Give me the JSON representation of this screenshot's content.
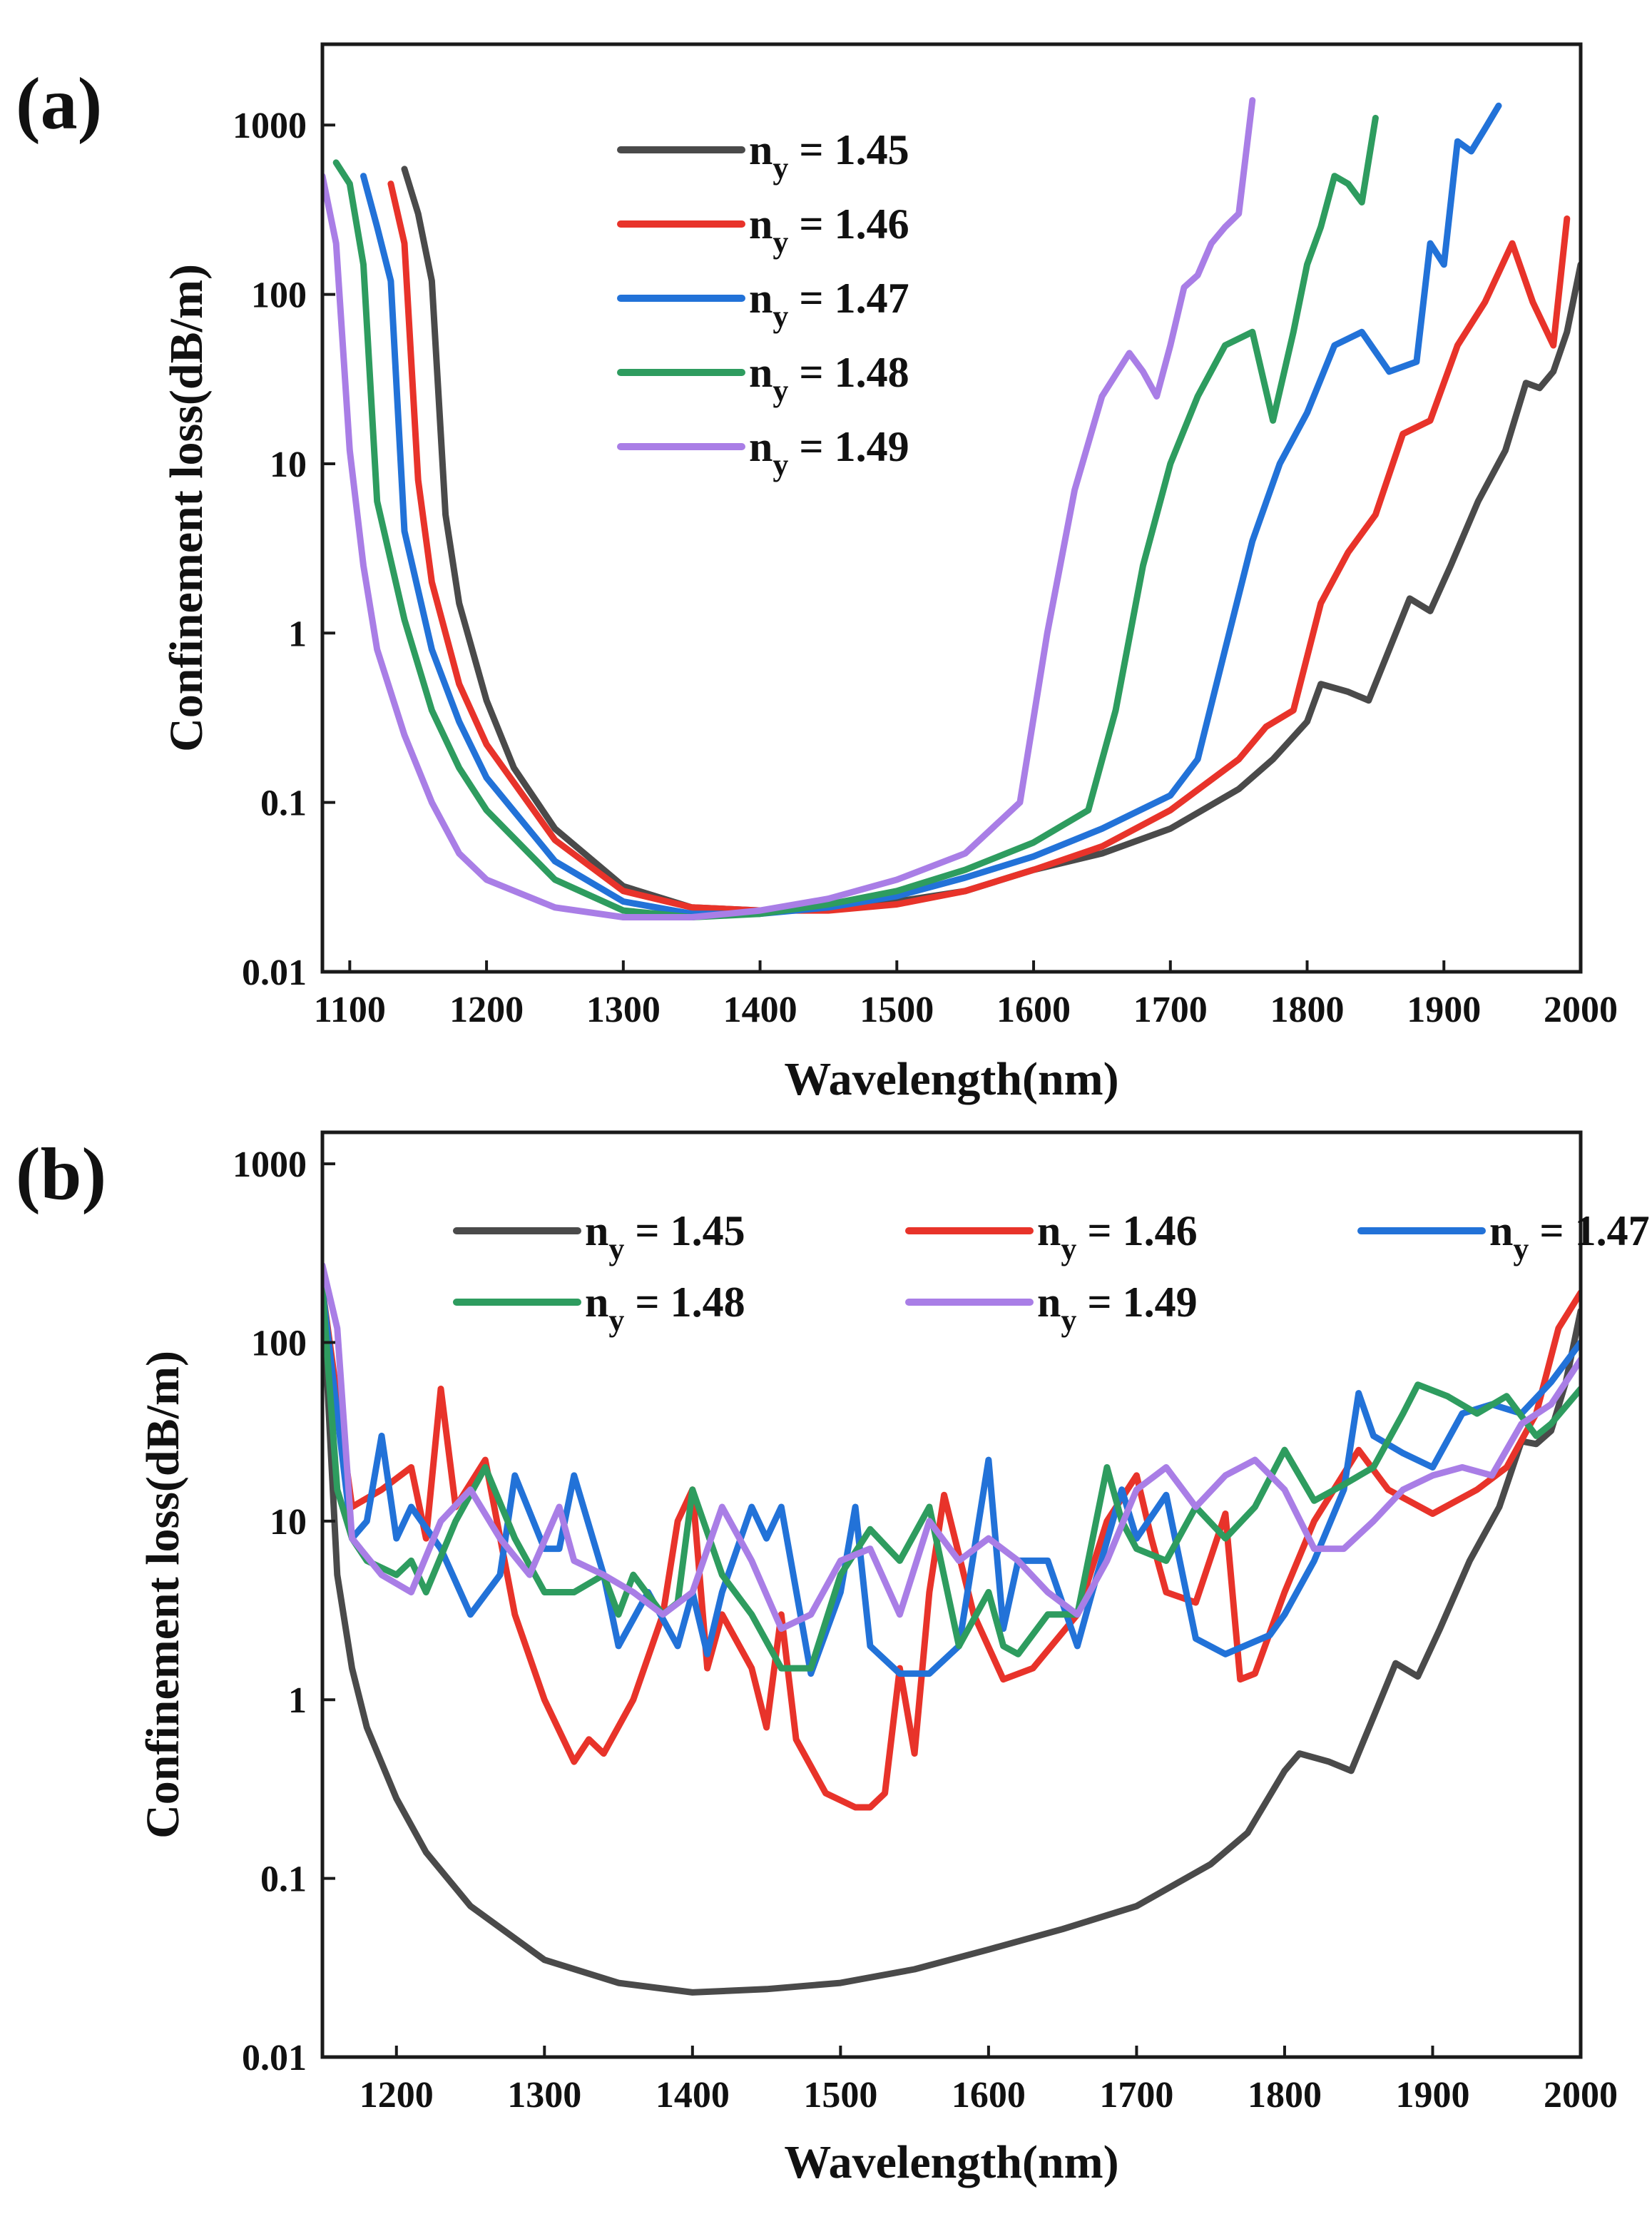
{
  "chart_data": [
    {
      "panel_label": "(a)",
      "type": "line",
      "xlabel": "Wavelength(nm)",
      "ylabel": "Confinement loss(dB/m)",
      "yscale": "log",
      "xlim": [
        1080,
        2000
      ],
      "ylim": [
        0.01,
        3000
      ],
      "xticks": [
        1100,
        1200,
        1300,
        1400,
        1500,
        1600,
        1700,
        1800,
        1900,
        2000
      ],
      "xtick_labels": [
        "1100",
        "1200",
        "1300",
        "1400",
        "1500",
        "1600",
        "1700",
        "1800",
        "1900",
        "2000"
      ],
      "yticks": [
        0.01,
        0.1,
        1,
        10,
        100,
        1000
      ],
      "ytick_labels": [
        "0.01",
        "0.1",
        "1",
        "10",
        "100",
        "1000"
      ],
      "legend": {
        "placement": "upper-center",
        "columns": 1
      },
      "series": [
        {
          "name": "n_y = 1.45",
          "label_main": "n",
          "label_sub": "y",
          "label_rest": " = 1.45",
          "color": "#4a4a4a",
          "x": [
            1140,
            1150,
            1160,
            1170,
            1180,
            1200,
            1220,
            1250,
            1300,
            1350,
            1400,
            1450,
            1500,
            1550,
            1600,
            1650,
            1700,
            1750,
            1775,
            1800,
            1810,
            1830,
            1845,
            1860,
            1875,
            1890,
            1905,
            1925,
            1945,
            1960,
            1970,
            1980,
            1990,
            2000
          ],
          "y": [
            550,
            300,
            120,
            5,
            1.5,
            0.4,
            0.16,
            0.07,
            0.032,
            0.024,
            0.023,
            0.024,
            0.026,
            0.03,
            0.04,
            0.05,
            0.07,
            0.12,
            0.18,
            0.3,
            0.5,
            0.45,
            0.4,
            0.8,
            1.6,
            1.35,
            2.5,
            6,
            12,
            30,
            28,
            35,
            60,
            150
          ]
        },
        {
          "name": "n_y = 1.46",
          "label_main": "n",
          "label_sub": "y",
          "label_rest": " = 1.46",
          "color": "#e8332a",
          "x": [
            1130,
            1140,
            1150,
            1160,
            1180,
            1200,
            1250,
            1300,
            1350,
            1400,
            1450,
            1500,
            1550,
            1600,
            1650,
            1700,
            1750,
            1770,
            1790,
            1810,
            1830,
            1850,
            1870,
            1890,
            1910,
            1930,
            1950,
            1965,
            1980,
            1990
          ],
          "y": [
            450,
            200,
            8,
            2,
            0.5,
            0.22,
            0.06,
            0.03,
            0.024,
            0.023,
            0.023,
            0.025,
            0.03,
            0.04,
            0.055,
            0.09,
            0.18,
            0.28,
            0.35,
            1.5,
            3,
            5,
            15,
            18,
            50,
            90,
            200,
            90,
            50,
            280
          ]
        },
        {
          "name": "n_y = 1.47",
          "label_main": "n",
          "label_sub": "y",
          "label_rest": " = 1.47",
          "color": "#2272d8",
          "x": [
            1110,
            1120,
            1130,
            1140,
            1160,
            1180,
            1200,
            1250,
            1300,
            1350,
            1400,
            1450,
            1500,
            1550,
            1600,
            1650,
            1700,
            1720,
            1740,
            1760,
            1780,
            1800,
            1820,
            1840,
            1860,
            1880,
            1890,
            1900,
            1910,
            1920,
            1930,
            1940
          ],
          "y": [
            500,
            250,
            120,
            4,
            0.8,
            0.3,
            0.14,
            0.045,
            0.026,
            0.022,
            0.022,
            0.024,
            0.028,
            0.036,
            0.048,
            0.07,
            0.11,
            0.18,
            0.8,
            3.5,
            10,
            20,
            50,
            60,
            35,
            40,
            200,
            150,
            800,
            700,
            950,
            1300
          ]
        },
        {
          "name": "n_y = 1.48",
          "label_main": "n",
          "label_sub": "y",
          "label_rest": " = 1.48",
          "color": "#2e9c5f",
          "x": [
            1090,
            1100,
            1110,
            1120,
            1140,
            1160,
            1180,
            1200,
            1250,
            1300,
            1350,
            1400,
            1450,
            1500,
            1550,
            1600,
            1640,
            1660,
            1680,
            1700,
            1720,
            1740,
            1760,
            1775,
            1790,
            1800,
            1810,
            1820,
            1830,
            1840,
            1850
          ],
          "y": [
            600,
            450,
            150,
            6,
            1.2,
            0.35,
            0.16,
            0.09,
            0.035,
            0.023,
            0.021,
            0.022,
            0.025,
            0.03,
            0.04,
            0.058,
            0.09,
            0.35,
            2.5,
            10,
            25,
            50,
            60,
            18,
            60,
            150,
            250,
            500,
            450,
            350,
            1100
          ]
        },
        {
          "name": "n_y = 1.49",
          "label_main": "n",
          "label_sub": "y",
          "label_rest": " = 1.49",
          "color": "#a97ee6",
          "x": [
            1080,
            1090,
            1100,
            1110,
            1120,
            1140,
            1160,
            1180,
            1200,
            1250,
            1300,
            1350,
            1400,
            1450,
            1500,
            1550,
            1590,
            1610,
            1630,
            1650,
            1670,
            1680,
            1690,
            1700,
            1710,
            1720,
            1730,
            1740,
            1750,
            1760
          ],
          "y": [
            500,
            200,
            12,
            2.5,
            0.8,
            0.25,
            0.1,
            0.05,
            0.035,
            0.024,
            0.021,
            0.021,
            0.023,
            0.027,
            0.035,
            0.05,
            0.1,
            1,
            7,
            25,
            45,
            35,
            25,
            50,
            110,
            130,
            200,
            250,
            300,
            1400
          ]
        }
      ]
    },
    {
      "panel_label": "(b)",
      "type": "line",
      "xlabel": "Wavelength(nm)",
      "ylabel": "Confinement loss(dB/m)",
      "yscale": "log",
      "xlim": [
        1150,
        2000
      ],
      "ylim": [
        0.01,
        1500
      ],
      "xticks": [
        1200,
        1300,
        1400,
        1500,
        1600,
        1700,
        1800,
        1900,
        2000
      ],
      "xtick_labels": [
        "1200",
        "1300",
        "1400",
        "1500",
        "1600",
        "1700",
        "1800",
        "1900",
        "2000"
      ],
      "yticks": [
        0.01,
        0.1,
        1,
        10,
        100,
        1000
      ],
      "ytick_labels": [
        "0.01",
        "0.1",
        "1",
        "10",
        "100",
        "1000"
      ],
      "legend": {
        "placement": "upper-center",
        "columns": 3
      },
      "series": [
        {
          "name": "n_y = 1.45",
          "label_main": "n",
          "label_sub": "y",
          "label_rest": " = 1.45",
          "color": "#4a4a4a",
          "x": [
            1150,
            1160,
            1170,
            1180,
            1200,
            1220,
            1250,
            1300,
            1350,
            1400,
            1450,
            1500,
            1550,
            1600,
            1650,
            1700,
            1750,
            1775,
            1800,
            1810,
            1830,
            1845,
            1860,
            1875,
            1890,
            1905,
            1925,
            1945,
            1960,
            1970,
            1980,
            1990,
            2000
          ],
          "y": [
            200,
            5,
            1.5,
            0.7,
            0.28,
            0.14,
            0.07,
            0.035,
            0.026,
            0.023,
            0.024,
            0.026,
            0.031,
            0.04,
            0.052,
            0.07,
            0.12,
            0.18,
            0.4,
            0.5,
            0.45,
            0.4,
            0.8,
            1.6,
            1.35,
            2.5,
            6,
            12,
            28,
            27,
            32,
            60,
            150
          ]
        },
        {
          "name": "n_y = 1.46",
          "label_main": "n",
          "label_sub": "y",
          "label_rest": " = 1.46",
          "color": "#e8332a",
          "x": [
            1150,
            1170,
            1190,
            1210,
            1220,
            1230,
            1240,
            1260,
            1280,
            1300,
            1320,
            1330,
            1340,
            1360,
            1380,
            1390,
            1400,
            1410,
            1420,
            1440,
            1450,
            1460,
            1470,
            1490,
            1510,
            1520,
            1530,
            1540,
            1550,
            1560,
            1570,
            1590,
            1610,
            1630,
            1660,
            1680,
            1700,
            1710,
            1720,
            1740,
            1760,
            1770,
            1780,
            1800,
            1820,
            1850,
            1870,
            1900,
            1930,
            1950,
            1970,
            1985,
            2000
          ],
          "y": [
            200,
            12,
            15,
            20,
            8,
            55,
            12,
            22,
            3,
            1,
            0.45,
            0.6,
            0.5,
            1,
            3,
            10,
            15,
            1.5,
            3,
            1.5,
            0.7,
            3,
            0.6,
            0.3,
            0.25,
            0.25,
            0.3,
            1.5,
            0.5,
            4,
            14,
            3,
            1.3,
            1.5,
            3,
            10,
            18,
            8,
            4,
            3.5,
            11,
            1.3,
            1.4,
            4,
            10,
            25,
            15,
            11,
            15,
            20,
            40,
            120,
            190
          ]
        },
        {
          "name": "n_y = 1.47",
          "label_main": "n",
          "label_sub": "y",
          "label_rest": " = 1.47",
          "color": "#2272d8",
          "x": [
            1150,
            1170,
            1180,
            1190,
            1200,
            1210,
            1230,
            1250,
            1270,
            1280,
            1300,
            1310,
            1320,
            1340,
            1350,
            1370,
            1390,
            1400,
            1410,
            1420,
            1440,
            1450,
            1460,
            1480,
            1500,
            1510,
            1520,
            1540,
            1560,
            1580,
            1600,
            1610,
            1620,
            1640,
            1660,
            1670,
            1690,
            1700,
            1720,
            1740,
            1760,
            1790,
            1800,
            1820,
            1840,
            1850,
            1860,
            1880,
            1900,
            1920,
            1940,
            1960,
            1980,
            2000
          ],
          "y": [
            200,
            8,
            10,
            30,
            8,
            12,
            7,
            3,
            5,
            18,
            7,
            7,
            18,
            5,
            2,
            4,
            2,
            4,
            1.8,
            4,
            12,
            8,
            12,
            1.4,
            4,
            12,
            2,
            1.4,
            1.4,
            2,
            22,
            2.5,
            6,
            6,
            2,
            4,
            15,
            8,
            14,
            2.2,
            1.8,
            2.3,
            3,
            6,
            15,
            52,
            30,
            24,
            20,
            40,
            45,
            40,
            60,
            100
          ]
        },
        {
          "name": "n_y = 1.48",
          "label_main": "n",
          "label_sub": "y",
          "label_rest": " = 1.48",
          "color": "#2e9c5f",
          "x": [
            1150,
            1160,
            1170,
            1180,
            1200,
            1210,
            1220,
            1240,
            1260,
            1280,
            1300,
            1320,
            1340,
            1350,
            1360,
            1380,
            1390,
            1400,
            1420,
            1440,
            1460,
            1480,
            1500,
            1520,
            1540,
            1560,
            1580,
            1600,
            1610,
            1620,
            1640,
            1660,
            1680,
            1690,
            1700,
            1720,
            1740,
            1760,
            1780,
            1800,
            1820,
            1840,
            1860,
            1880,
            1890,
            1910,
            1930,
            1950,
            1970,
            1980,
            2000
          ],
          "y": [
            200,
            15,
            8,
            6,
            5,
            6,
            4,
            10,
            20,
            8,
            4,
            4,
            5,
            3,
            5,
            3,
            3.5,
            15,
            5,
            3,
            1.5,
            1.5,
            5,
            9,
            6,
            12,
            2,
            4,
            2,
            1.8,
            3,
            3,
            20,
            10,
            7,
            6,
            12,
            8,
            12,
            25,
            13,
            16,
            20,
            40,
            58,
            50,
            40,
            50,
            30,
            35,
            55
          ]
        },
        {
          "name": "n_y = 1.49",
          "label_main": "n",
          "label_sub": "y",
          "label_rest": " = 1.49",
          "color": "#a97ee6",
          "x": [
            1150,
            1160,
            1170,
            1190,
            1210,
            1230,
            1250,
            1270,
            1290,
            1310,
            1320,
            1340,
            1360,
            1380,
            1400,
            1420,
            1440,
            1460,
            1480,
            1500,
            1520,
            1540,
            1560,
            1580,
            1600,
            1620,
            1640,
            1660,
            1680,
            1700,
            1720,
            1740,
            1760,
            1780,
            1800,
            1820,
            1840,
            1860,
            1880,
            1900,
            1920,
            1940,
            1960,
            1980,
            2000
          ],
          "y": [
            270,
            120,
            8,
            5,
            4,
            10,
            15,
            8,
            5,
            12,
            6,
            5,
            4,
            3,
            4,
            12,
            6,
            2.5,
            3,
            6,
            7,
            3,
            10,
            6,
            8,
            6,
            4,
            3,
            6,
            15,
            20,
            12,
            18,
            22,
            15,
            7,
            7,
            10,
            15,
            18,
            20,
            18,
            35,
            45,
            80
          ]
        }
      ]
    }
  ]
}
